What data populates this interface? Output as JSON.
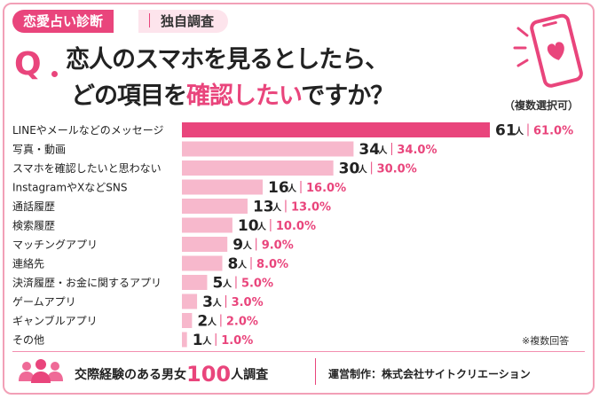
{
  "header": {
    "tag_primary": "恋愛占い診断",
    "tag_secondary": "独自調査",
    "q_mark": "Q",
    "question_line1": "恋人のスマホを見るとしたら、",
    "question_line2_part1": "どの項目を",
    "question_line2_highlight": "確認したい",
    "question_line2_part3": "ですか？",
    "multi_select": "（複数選択可）"
  },
  "chart_data": {
    "type": "bar",
    "orientation": "horizontal",
    "categories": [
      "LINEやメールなどのメッセージ",
      "写真・動画",
      "スマホを確認したいと思わない",
      "InstagramやXなどSNS",
      "通話履歴",
      "検索履歴",
      "マッチングアプリ",
      "連絡先",
      "決済履歴・お金に関するアプリ",
      "ゲームアプリ",
      "ギャンブルアプリ",
      "その他"
    ],
    "values": [
      61,
      34,
      30,
      16,
      13,
      10,
      9,
      8,
      5,
      3,
      2,
      1
    ],
    "percents": [
      "61.0%",
      "34.0%",
      "30.0%",
      "16.0%",
      "13.0%",
      "10.0%",
      "9.0%",
      "8.0%",
      "5.0%",
      "3.0%",
      "2.0%",
      "1.0%"
    ],
    "count_unit": "人",
    "xlim": [
      0,
      61
    ],
    "colors": {
      "bar_top": "#e9457c",
      "bar_light": "#f7b8cc",
      "text": "#e9457c"
    }
  },
  "note": "※複数回答",
  "footer": {
    "text_prefix": "交際経験のある男女",
    "number": "100",
    "text_suffix": "人調査",
    "operator": "運営制作：株式会社サイトクリエーション",
    "icon": "people-icon"
  },
  "accent_color": "#e9457c"
}
